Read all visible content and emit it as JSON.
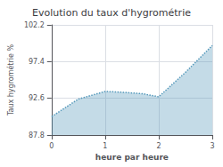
{
  "chart_data": {
    "type": "area",
    "title": "Evolution du taux d'hygrométrie",
    "xlabel": "heure par heure",
    "ylabel": "Taux hygrométrie %",
    "x": [
      0,
      0.5,
      1.0,
      1.3,
      1.7,
      2.0,
      2.5,
      3.0
    ],
    "values": [
      90.2,
      92.5,
      93.5,
      93.4,
      93.2,
      92.8,
      96.0,
      99.5
    ],
    "xlim": [
      0,
      3
    ],
    "xticks": [
      0,
      1,
      2,
      3
    ],
    "ylim": [
      87.8,
      102.2
    ],
    "yticks": [
      87.8,
      92.6,
      97.4,
      102.2
    ],
    "color": "#5599bb",
    "line_style": "dotted",
    "grid": true
  }
}
